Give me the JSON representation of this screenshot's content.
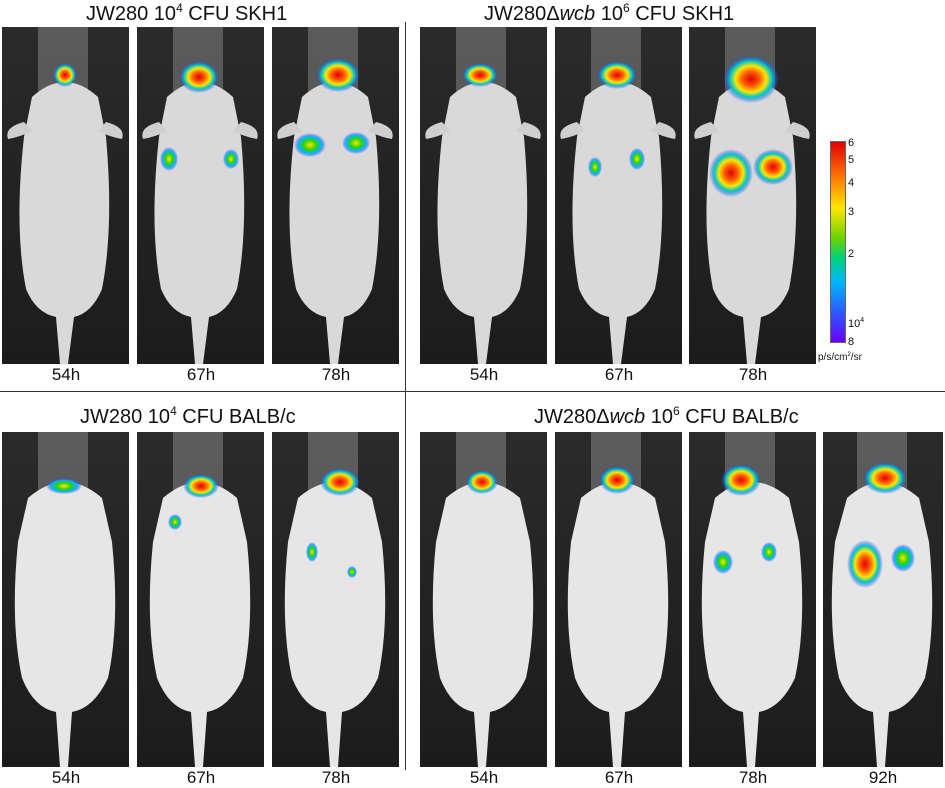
{
  "panels": {
    "top_left": {
      "title_prefix": "JW280 10",
      "title_sup": "4",
      "title_suffix": " CFU SKH1",
      "times": [
        "54h",
        "67h",
        "78h"
      ]
    },
    "top_right": {
      "title_prefix": "JW280Δ",
      "title_italic": "wcb",
      "title_mid": " 10",
      "title_sup": "6",
      "title_suffix": " CFU SKH1",
      "times": [
        "54h",
        "67h",
        "78h"
      ]
    },
    "bottom_left": {
      "title_prefix": "JW280 10",
      "title_sup": "4",
      "title_suffix": " CFU BALB/c",
      "times": [
        "54h",
        "67h",
        "78h"
      ]
    },
    "bottom_right": {
      "title_prefix": "JW280Δ",
      "title_italic": "wcb",
      "title_mid": " 10",
      "title_sup": "6",
      "title_suffix": " CFU BALB/c",
      "times": [
        "54h",
        "67h",
        "78h",
        "92h"
      ]
    }
  },
  "scale": {
    "labels": [
      "6",
      "5",
      "4",
      "3",
      "2",
      "10",
      "8"
    ],
    "sup_label_exp": "4",
    "units_prefix": "p/s/cm",
    "units_sup": "2",
    "units_suffix": "/sr",
    "colors": [
      "#e00000",
      "#ff7a00",
      "#ffe600",
      "#6bd300",
      "#00d27a",
      "#00b7ff",
      "#2a5bff",
      "#6a00ff"
    ]
  }
}
